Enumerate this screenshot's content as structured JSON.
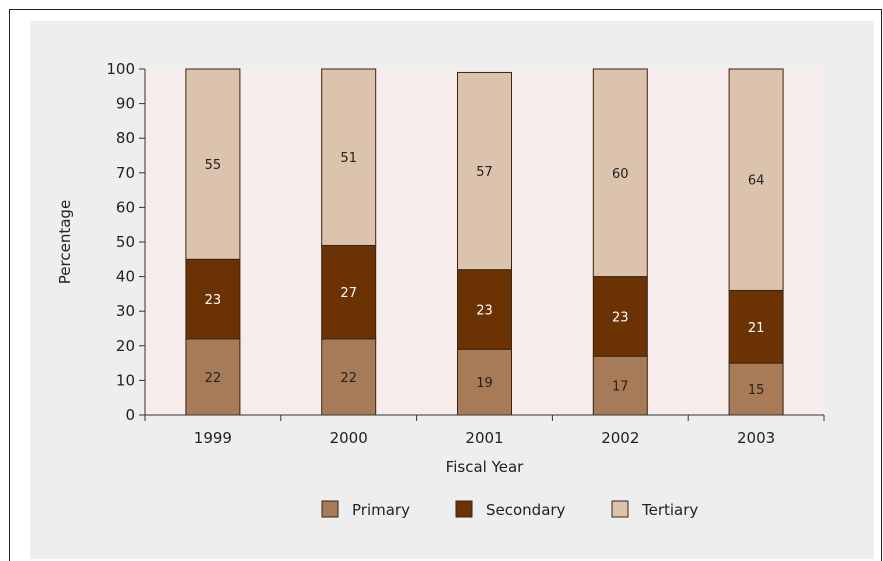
{
  "chart_data": {
    "type": "bar",
    "stacked": true,
    "title": "",
    "xlabel": "Fiscal Year",
    "ylabel": "Percentage",
    "ylim": [
      0,
      100
    ],
    "yticks": [
      0,
      10,
      20,
      30,
      40,
      50,
      60,
      70,
      80,
      90,
      100
    ],
    "categories": [
      "1999",
      "2000",
      "2001",
      "2002",
      "2003"
    ],
    "series": [
      {
        "name": "Primary",
        "values": [
          22,
          22,
          19,
          17,
          15
        ],
        "color": "#a77b57",
        "label_color": "#222222"
      },
      {
        "name": "Secondary",
        "values": [
          23,
          27,
          23,
          23,
          21
        ],
        "color": "#6b3204",
        "label_color": "#ffffff"
      },
      {
        "name": "Tertiary",
        "values": [
          55,
          51,
          57,
          60,
          64
        ],
        "color": "#dcc3ad",
        "label_color": "#222222"
      }
    ],
    "plot_background": "#f5eceb",
    "grid": false,
    "legend_position": "bottom"
  }
}
